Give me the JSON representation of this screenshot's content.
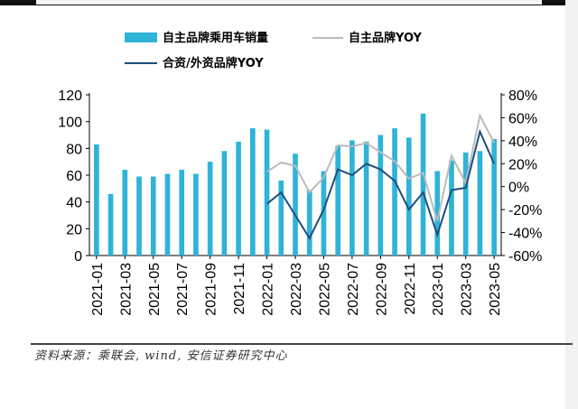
{
  "chart_data": {
    "type": "bar+line",
    "categories": [
      "2021-01",
      "2021-02",
      "2021-03",
      "2021-04",
      "2021-05",
      "2021-06",
      "2021-07",
      "2021-08",
      "2021-09",
      "2021-10",
      "2021-11",
      "2021-12",
      "2022-01",
      "2022-02",
      "2022-03",
      "2022-04",
      "2022-05",
      "2022-06",
      "2022-07",
      "2022-08",
      "2022-09",
      "2022-10",
      "2022-11",
      "2022-12",
      "2023-01",
      "2023-02",
      "2023-03",
      "2023-04",
      "2023-05"
    ],
    "xticks": [
      "2021-01",
      "2021-03",
      "2021-05",
      "2021-07",
      "2021-09",
      "2021-11",
      "2022-01",
      "2022-03",
      "2022-05",
      "2022-07",
      "2022-09",
      "2022-11",
      "2023-01",
      "2023-03",
      "2023-05"
    ],
    "bar_series": {
      "name": "自主品牌乘用车销量",
      "color": "#2fb3d9",
      "values": [
        83,
        46,
        64,
        59,
        59,
        61,
        64,
        61,
        70,
        78,
        85,
        95,
        94,
        56,
        76,
        49,
        63,
        82,
        86,
        85,
        90,
        95,
        88,
        106,
        63,
        71,
        77,
        78,
        87
      ]
    },
    "line_series": [
      {
        "name": "自主品牌YOY",
        "color": "#bbbbbb",
        "values": [
          null,
          null,
          null,
          null,
          null,
          null,
          null,
          null,
          null,
          null,
          null,
          null,
          13,
          21,
          18,
          -5,
          8,
          36,
          35,
          38,
          30,
          22,
          7,
          12,
          -30,
          27,
          3,
          62,
          38
        ]
      },
      {
        "name": "合资/外资品牌YOY",
        "color": "#1f4e79",
        "values": [
          null,
          null,
          null,
          null,
          null,
          null,
          null,
          null,
          null,
          null,
          null,
          null,
          -15,
          -5,
          -25,
          -45,
          -20,
          15,
          10,
          20,
          15,
          5,
          -20,
          -5,
          -42,
          -3,
          -1,
          48,
          20
        ]
      }
    ],
    "ylim_left": [
      0,
      120
    ],
    "yticks_left": [
      "0",
      "20",
      "40",
      "60",
      "80",
      "100",
      "120"
    ],
    "ylim_right": [
      -60,
      80
    ],
    "yticks_right": [
      "-60%",
      "-40%",
      "-20%",
      "0%",
      "20%",
      "40%",
      "60%",
      "80%"
    ],
    "legend": [
      "自主品牌乘用车销量",
      "自主品牌YOY",
      "合资/外资品牌YOY"
    ]
  },
  "source_note": "资料来源：乘联会, wind, 安信证券研究中心"
}
